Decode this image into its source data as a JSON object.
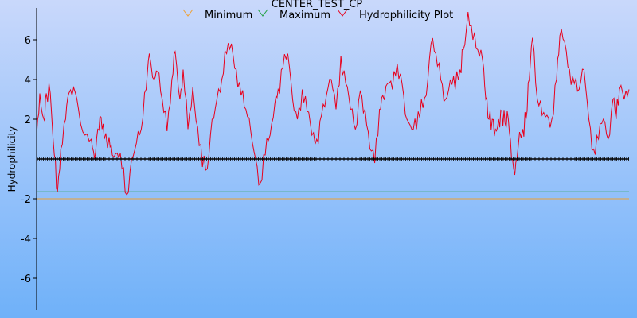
{
  "chart_data": {
    "type": "line",
    "title": "CENTER_TEST_CP",
    "ylabel": "Hydrophilicity",
    "xlabel": "",
    "ylim": [
      -7.6,
      7.6
    ],
    "yticks": [
      -6,
      -4,
      -2,
      2,
      4,
      6
    ],
    "grid": false,
    "legend": {
      "placement": "top-center",
      "entries": [
        "Minimum",
        "Maximum",
        "Hydrophilicity Plot"
      ]
    },
    "series": [
      {
        "name": "Minimum",
        "color": "#f0a030",
        "kind": "constant",
        "value": -2.0
      },
      {
        "name": "Maximum",
        "color": "#20a040",
        "kind": "constant",
        "value": -1.65
      },
      {
        "name": "Hydrophilicity Plot",
        "color": "#e8001c",
        "kind": "profile",
        "anchors": [
          [
            0,
            1.2
          ],
          [
            4,
            3.3
          ],
          [
            9,
            2.0
          ],
          [
            12,
            3.3
          ],
          [
            17,
            3.3
          ],
          [
            22,
            0.2
          ],
          [
            26,
            -1.6
          ],
          [
            30,
            0.5
          ],
          [
            36,
            2.0
          ],
          [
            40,
            3.3
          ],
          [
            46,
            3.6
          ],
          [
            52,
            2.5
          ],
          [
            60,
            1.2
          ],
          [
            68,
            1.0
          ],
          [
            72,
            0.0
          ],
          [
            76,
            1.5
          ],
          [
            80,
            2.1
          ],
          [
            84,
            1.0
          ],
          [
            90,
            1.1
          ],
          [
            94,
            0.2
          ],
          [
            100,
            0.3
          ],
          [
            106,
            -0.5
          ],
          [
            112,
            -1.8
          ],
          [
            118,
            0.0
          ],
          [
            124,
            0.8
          ],
          [
            130,
            1.5
          ],
          [
            136,
            3.5
          ],
          [
            140,
            5.3
          ],
          [
            146,
            4.0
          ],
          [
            150,
            4.4
          ],
          [
            156,
            3.0
          ],
          [
            162,
            1.4
          ],
          [
            168,
            4.0
          ],
          [
            172,
            5.4
          ],
          [
            178,
            3.0
          ],
          [
            182,
            4.5
          ],
          [
            188,
            1.5
          ],
          [
            194,
            3.6
          ],
          [
            200,
            1.6
          ],
          [
            206,
            -0.4
          ],
          [
            212,
            -0.5
          ],
          [
            218,
            2.0
          ],
          [
            224,
            3.0
          ],
          [
            230,
            4.0
          ],
          [
            236,
            5.3
          ],
          [
            242,
            5.8
          ],
          [
            248,
            4.5
          ],
          [
            254,
            3.2
          ],
          [
            260,
            2.5
          ],
          [
            266,
            1.4
          ],
          [
            272,
            0.0
          ],
          [
            278,
            -1.2
          ],
          [
            284,
            0.2
          ],
          [
            290,
            1.2
          ],
          [
            296,
            2.8
          ],
          [
            300,
            3.5
          ],
          [
            306,
            4.6
          ],
          [
            312,
            5.3
          ],
          [
            318,
            3.0
          ],
          [
            324,
            2.0
          ],
          [
            330,
            3.5
          ],
          [
            336,
            2.4
          ],
          [
            342,
            1.2
          ],
          [
            348,
            1.0
          ],
          [
            354,
            2.2
          ],
          [
            360,
            3.2
          ],
          [
            366,
            4.0
          ],
          [
            372,
            2.5
          ],
          [
            378,
            5.2
          ],
          [
            384,
            3.8
          ],
          [
            390,
            2.5
          ],
          [
            396,
            1.5
          ],
          [
            402,
            3.4
          ],
          [
            408,
            2.5
          ],
          [
            414,
            0.5
          ],
          [
            420,
            -0.2
          ],
          [
            426,
            2.5
          ],
          [
            430,
            3.2
          ],
          [
            436,
            3.8
          ],
          [
            442,
            3.5
          ],
          [
            448,
            4.8
          ],
          [
            454,
            3.8
          ],
          [
            460,
            2.0
          ],
          [
            466,
            1.5
          ],
          [
            472,
            1.5
          ],
          [
            478,
            3.0
          ],
          [
            484,
            3.2
          ],
          [
            490,
            5.8
          ],
          [
            496,
            5.3
          ],
          [
            502,
            4.0
          ],
          [
            508,
            3.0
          ],
          [
            514,
            4.0
          ],
          [
            520,
            3.5
          ],
          [
            526,
            4.5
          ],
          [
            530,
            5.5
          ],
          [
            536,
            7.4
          ],
          [
            542,
            6.0
          ],
          [
            548,
            5.5
          ],
          [
            554,
            5.0
          ],
          [
            558,
            3.0
          ],
          [
            562,
            2.0
          ],
          [
            566,
            2.0
          ],
          [
            570,
            1.5
          ],
          [
            574,
            2.0
          ],
          [
            578,
            2.4
          ],
          [
            582,
            1.8
          ],
          [
            586,
            2.0
          ],
          [
            590,
            0.0
          ],
          [
            594,
            -0.8
          ],
          [
            598,
            0.5
          ],
          [
            604,
            1.5
          ],
          [
            608,
            2.0
          ],
          [
            612,
            4.0
          ],
          [
            616,
            6.1
          ],
          [
            622,
            3.0
          ],
          [
            628,
            2.2
          ],
          [
            634,
            2.2
          ],
          [
            640,
            2.0
          ],
          [
            646,
            4.0
          ],
          [
            650,
            6.2
          ],
          [
            656,
            5.9
          ],
          [
            662,
            4.5
          ],
          [
            668,
            3.8
          ],
          [
            674,
            3.5
          ],
          [
            680,
            4.5
          ],
          [
            686,
            2.0
          ],
          [
            692,
            0.5
          ],
          [
            698,
            1.0
          ],
          [
            704,
            2.0
          ],
          [
            710,
            1.0
          ],
          [
            716,
            3.0
          ],
          [
            720,
            2.0
          ],
          [
            724,
            3.5
          ],
          [
            730,
            3.0
          ],
          [
            736,
            3.5
          ]
        ]
      },
      {
        "name": "Baseline",
        "color": "#000000",
        "kind": "constant-markers",
        "value": 0.0
      }
    ]
  }
}
